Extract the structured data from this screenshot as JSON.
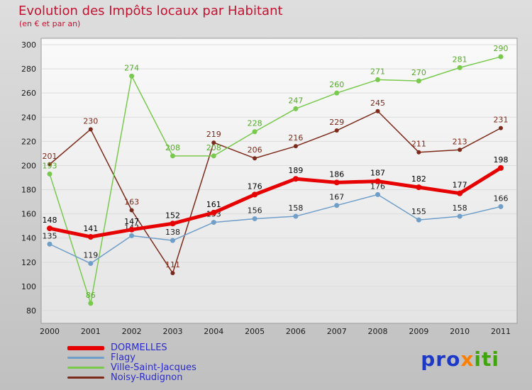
{
  "header": {
    "title": "Evolution des Impôts locaux par Habitant",
    "subtitle": "(en € et par an)"
  },
  "chart_data": {
    "type": "line",
    "title": "Evolution des Impôts locaux par Habitant",
    "subtitle": "(en € et par an)",
    "x": [
      2000,
      2001,
      2002,
      2003,
      2004,
      2005,
      2006,
      2007,
      2008,
      2009,
      2010,
      2011
    ],
    "ylim": [
      80,
      300
    ],
    "ytick_step": 20,
    "grid": "horizontal",
    "legend_position": "bottom-left",
    "series": [
      {
        "name": "DORMELLES",
        "color": "#e60000",
        "label_color": "#000000",
        "width": 5,
        "marker_r": 4,
        "values": [
          148,
          141,
          147,
          152,
          161,
          176,
          189,
          186,
          187,
          182,
          177,
          198
        ]
      },
      {
        "name": "Flagy",
        "color": "#6f9ec9",
        "label_color": "#1a1a1a",
        "width": 1.5,
        "marker_r": 3.5,
        "values": [
          135,
          119,
          142,
          138,
          153,
          156,
          158,
          167,
          176,
          155,
          158,
          166
        ]
      },
      {
        "name": "Ville-Saint-Jacques",
        "color": "#79c94d",
        "label_color": "#55aa28",
        "width": 1.5,
        "marker_r": 3.5,
        "values": [
          193,
          86,
          274,
          208,
          208,
          228,
          247,
          260,
          271,
          270,
          281,
          290
        ]
      },
      {
        "name": "Noisy-Rudignon",
        "color": "#7c2a1a",
        "label_color": "#7c2a1a",
        "width": 1.5,
        "marker_r": 3,
        "values": [
          201,
          230,
          163,
          111,
          219,
          206,
          216,
          229,
          245,
          211,
          213,
          231
        ]
      }
    ]
  },
  "logo": {
    "blue": "pro",
    "orange": "x",
    "green": "iti"
  }
}
